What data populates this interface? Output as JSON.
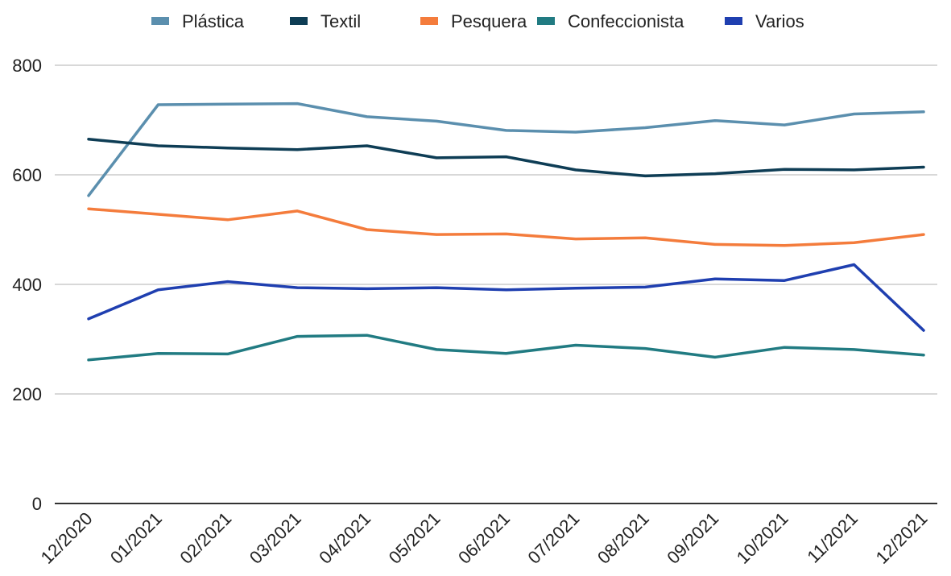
{
  "chart_data": {
    "type": "line",
    "categories": [
      "12/2020",
      "01/2021",
      "02/2021",
      "03/2021",
      "04/2021",
      "05/2021",
      "06/2021",
      "07/2021",
      "08/2021",
      "09/2021",
      "10/2021",
      "11/2021",
      "12/2021"
    ],
    "series": [
      {
        "name": "Plástica",
        "color": "#5b8fae",
        "values": [
          562,
          728,
          729,
          730,
          706,
          698,
          681,
          678,
          686,
          699,
          691,
          711,
          715
        ]
      },
      {
        "name": "Textil",
        "color": "#0e3d55",
        "values": [
          665,
          653,
          649,
          646,
          653,
          631,
          633,
          609,
          598,
          602,
          610,
          609,
          614
        ]
      },
      {
        "name": "Pesquera",
        "color": "#f47c3c",
        "values": [
          538,
          528,
          518,
          534,
          500,
          491,
          492,
          483,
          485,
          473,
          471,
          476,
          491
        ]
      },
      {
        "name": "Confeccionista",
        "color": "#217b82",
        "values": [
          262,
          274,
          273,
          305,
          307,
          281,
          274,
          289,
          283,
          267,
          285,
          281,
          271
        ]
      },
      {
        "name": "Varios",
        "color": "#1f3fb0",
        "values": [
          337,
          390,
          405,
          394,
          392,
          394,
          390,
          393,
          395,
          410,
          407,
          436,
          316
        ]
      }
    ],
    "ylim": [
      0,
      800
    ],
    "yticks": [
      0,
      200,
      400,
      600,
      800
    ],
    "grid": true,
    "legend_position": "top"
  }
}
